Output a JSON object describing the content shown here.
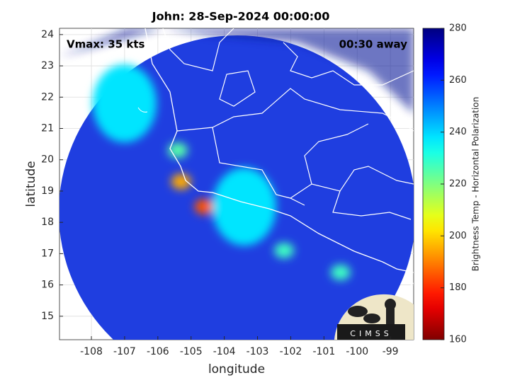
{
  "chart_data": {
    "type": "map",
    "title": "John: 28-Sep-2024 00:00:00",
    "annotations": [
      "Vmax: 35 kts",
      "00:30 away"
    ],
    "xlabel": "longitude",
    "ylabel": "latitude",
    "xlim": [
      -108.96,
      -98.3
    ],
    "ylim": [
      14.25,
      24.2
    ],
    "xticks": [
      -108,
      -107,
      -106,
      -105,
      -104,
      -103,
      -102,
      -101,
      -100,
      -99
    ],
    "yticks": [
      15,
      16,
      17,
      18,
      19,
      20,
      21,
      22,
      23,
      24
    ],
    "grid": true,
    "colormap": "jet_r",
    "clim": [
      160,
      280
    ],
    "cticks": [
      160,
      180,
      200,
      220,
      240,
      260,
      280
    ],
    "clabel": "Brightness Temp - Horizontal Polarization",
    "x": [
      -107.0,
      -105.4,
      -105.3,
      -104.6,
      -103.4,
      -102.2,
      -100.5
    ],
    "y": [
      21.8,
      20.3,
      19.3,
      18.5,
      18.5,
      17.1,
      16.4
    ],
    "values": [
      238,
      225,
      195,
      185,
      238,
      228,
      228
    ],
    "logo": "CIMSS"
  }
}
